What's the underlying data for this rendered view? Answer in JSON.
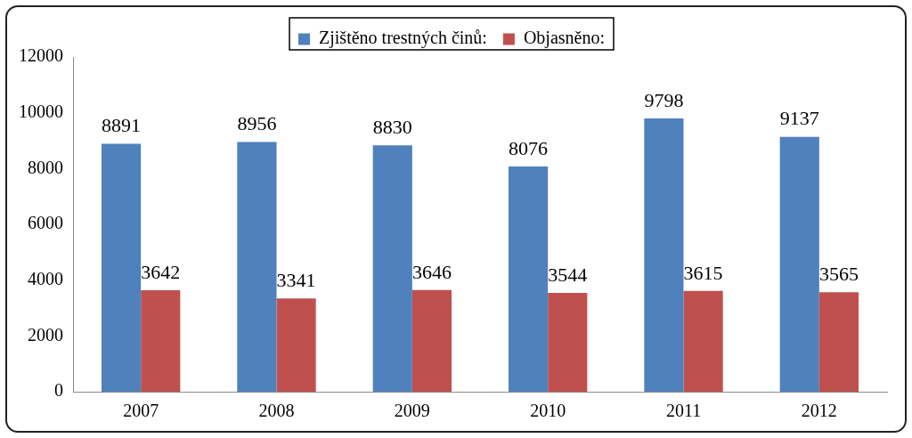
{
  "chart_data": {
    "type": "bar",
    "categories": [
      "2007",
      "2008",
      "2009",
      "2010",
      "2011",
      "2012"
    ],
    "series": [
      {
        "name": "Zjištěno trestných činů:",
        "color": "#4f81bd",
        "values": [
          8891,
          8956,
          8830,
          8076,
          9798,
          9137
        ]
      },
      {
        "name": "Objasněno:",
        "color": "#c0504d",
        "values": [
          3642,
          3341,
          3646,
          3544,
          3615,
          3565
        ]
      }
    ],
    "ylim": [
      0,
      12000
    ],
    "yticks": [
      0,
      2000,
      4000,
      6000,
      8000,
      10000,
      12000
    ],
    "grid": false,
    "legend": "top",
    "data_labels": true
  }
}
